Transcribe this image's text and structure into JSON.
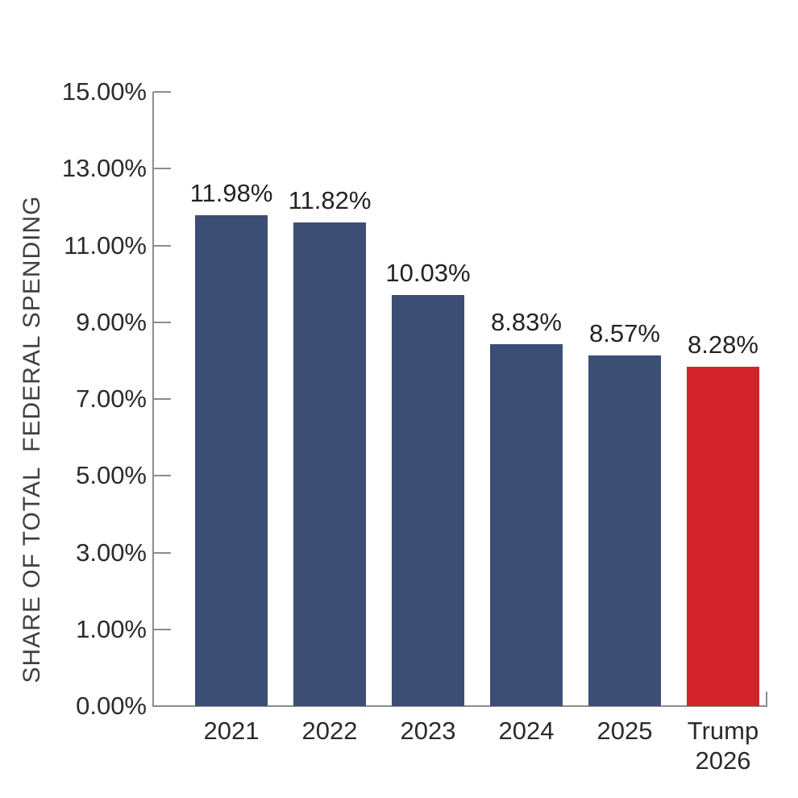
{
  "chart_data": {
    "type": "bar",
    "title": "",
    "xlabel": "",
    "ylabel": "SHARE OF TOTAL  FEDERAL SPENDING",
    "categories": [
      "2021",
      "2022",
      "2023",
      "2024",
      "2025",
      "Trump 2026"
    ],
    "values": [
      11.98,
      11.82,
      10.03,
      8.83,
      8.57,
      8.28
    ],
    "value_labels": [
      "11.98%",
      "11.82%",
      "10.03%",
      "8.83%",
      "8.57%",
      "8.28%"
    ],
    "bar_colors": [
      "#3c4e74",
      "#3c4e74",
      "#3c4e74",
      "#3c4e74",
      "#3c4e74",
      "#d2232a"
    ],
    "y_ticks": [
      "15.00%",
      "13.00%",
      "11.00%",
      "9.00%",
      "7.00%",
      "5.00%",
      "3.00%",
      "1.00%",
      "0.00%"
    ],
    "ylim": [
      0,
      15
    ],
    "grid": false,
    "legend": "none",
    "colors": {
      "bar_default": "#3c4e74",
      "bar_highlight": "#d2232a",
      "axis": "#8c8c8c",
      "label_text": "#2c2a2b"
    }
  }
}
